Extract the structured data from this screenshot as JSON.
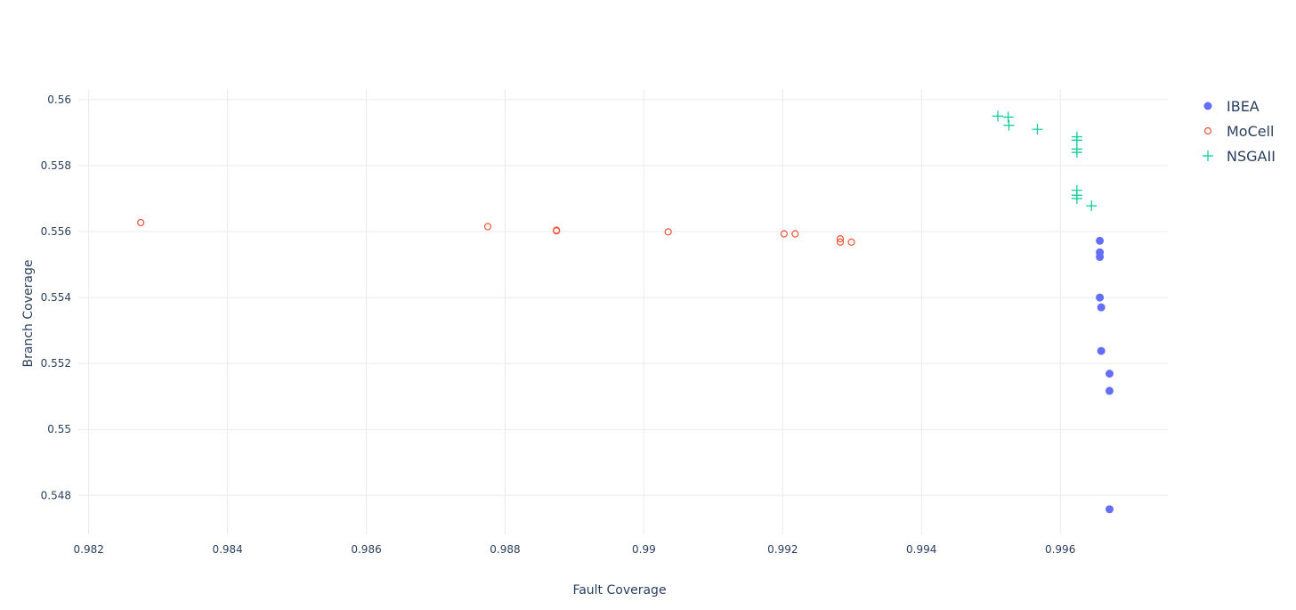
{
  "chart_data": {
    "type": "scatter",
    "title": "",
    "xlabel": "Fault Coverage",
    "ylabel": "Branch Coverage",
    "xlim": [
      0.98185,
      0.99755
    ],
    "ylim": [
      0.54682,
      0.56032
    ],
    "xticks": [
      0.982,
      0.984,
      0.986,
      0.988,
      0.99,
      0.992,
      0.994,
      0.996
    ],
    "xtick_labels": [
      "0.982",
      "0.984",
      "0.986",
      "0.988",
      "0.99",
      "0.992",
      "0.994",
      "0.996"
    ],
    "yticks": [
      0.548,
      0.55,
      0.552,
      0.554,
      0.556,
      0.558,
      0.56
    ],
    "ytick_labels": [
      "0.548",
      "0.55",
      "0.552",
      "0.554",
      "0.556",
      "0.558",
      "0.56"
    ],
    "grid": true,
    "legend_position": "top-right",
    "series": [
      {
        "name": "IBEA",
        "marker": "circle-filled",
        "color": "#636efa",
        "points": [
          [
            0.99657,
            0.55572
          ],
          [
            0.99657,
            0.55537
          ],
          [
            0.99657,
            0.55523
          ],
          [
            0.99657,
            0.554
          ],
          [
            0.99659,
            0.5537
          ],
          [
            0.99659,
            0.55238
          ],
          [
            0.99671,
            0.55169
          ],
          [
            0.99671,
            0.55117
          ],
          [
            0.99671,
            0.54758
          ]
        ]
      },
      {
        "name": "MoCell",
        "marker": "circle-open",
        "color": "#ef553b",
        "points": [
          [
            0.98275,
            0.55627
          ],
          [
            0.98775,
            0.55615
          ],
          [
            0.98874,
            0.55604
          ],
          [
            0.98874,
            0.55602
          ],
          [
            0.99035,
            0.55599
          ],
          [
            0.99202,
            0.55593
          ],
          [
            0.99218,
            0.55593
          ],
          [
            0.99283,
            0.55578
          ],
          [
            0.99283,
            0.55568
          ],
          [
            0.99299,
            0.55568
          ]
        ]
      },
      {
        "name": "NSGAII",
        "marker": "cross",
        "color": "#00cc96",
        "points": [
          [
            0.9951,
            0.5595
          ],
          [
            0.99525,
            0.55947
          ],
          [
            0.99526,
            0.55922
          ],
          [
            0.99567,
            0.5591
          ],
          [
            0.99624,
            0.55887
          ],
          [
            0.99624,
            0.55877
          ],
          [
            0.99624,
            0.5585
          ],
          [
            0.99624,
            0.5584
          ],
          [
            0.99624,
            0.55725
          ],
          [
            0.99624,
            0.5571
          ],
          [
            0.99624,
            0.557
          ],
          [
            0.99645,
            0.55678
          ]
        ]
      }
    ]
  }
}
